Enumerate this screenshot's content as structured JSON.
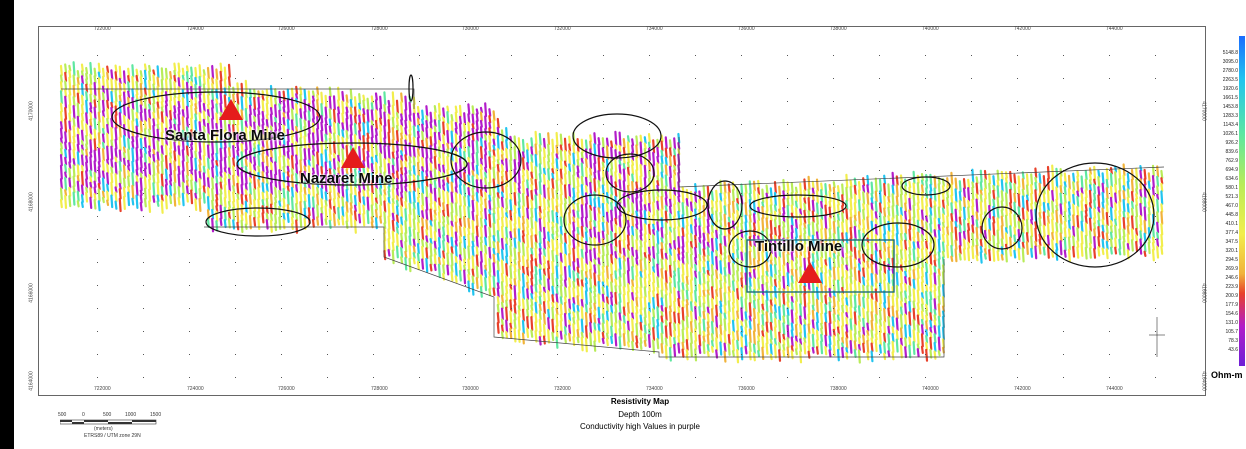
{
  "map": {
    "x_ticks": [
      "722000",
      "724000",
      "726000",
      "728000",
      "730000",
      "732000",
      "734000",
      "736000",
      "738000",
      "740000",
      "742000",
      "744000"
    ],
    "y_ticks": [
      "4170000",
      "4168000",
      "4166000",
      "4164000"
    ],
    "mines": [
      {
        "name": "Santa Flora Mine"
      },
      {
        "name": "Nazaret Mine"
      },
      {
        "name": "Tintillo Mine"
      }
    ],
    "mine_marker_color": "#e51c1c"
  },
  "legend": {
    "values": [
      "5148.8",
      "3095.0",
      "2780.0",
      "2263.5",
      "1920.6",
      "1661.5",
      "1453.8",
      "1283.3",
      "1143.4",
      "1026.1",
      "926.2",
      "839.6",
      "762.9",
      "694.9",
      "634.6",
      "580.1",
      "521.3",
      "467.0",
      "445.8",
      "410.1",
      "377.4",
      "347.5",
      "320.1",
      "294.5",
      "269.9",
      "246.6",
      "223.9",
      "200.9",
      "177.9",
      "154.6",
      "131.0",
      "105.7",
      "78.3",
      "43.6"
    ],
    "unit": "Ohm-m",
    "colors": [
      "#1a6cff",
      "#21c4ef",
      "#5ee7a0",
      "#b8ec58",
      "#f2ee4c",
      "#f1b33a",
      "#e8412a",
      "#b21cc9",
      "#6d1fd6"
    ]
  },
  "caption": {
    "title": "Resistivity Map",
    "depth": "Depth 100m",
    "note": "Conductivity high Values in purple"
  },
  "scalebar": {
    "labels": [
      "500",
      "0",
      "500",
      "1000",
      "1500"
    ],
    "unit": "(meters)",
    "projection": "ETRS89 / UTM zone 29N"
  }
}
